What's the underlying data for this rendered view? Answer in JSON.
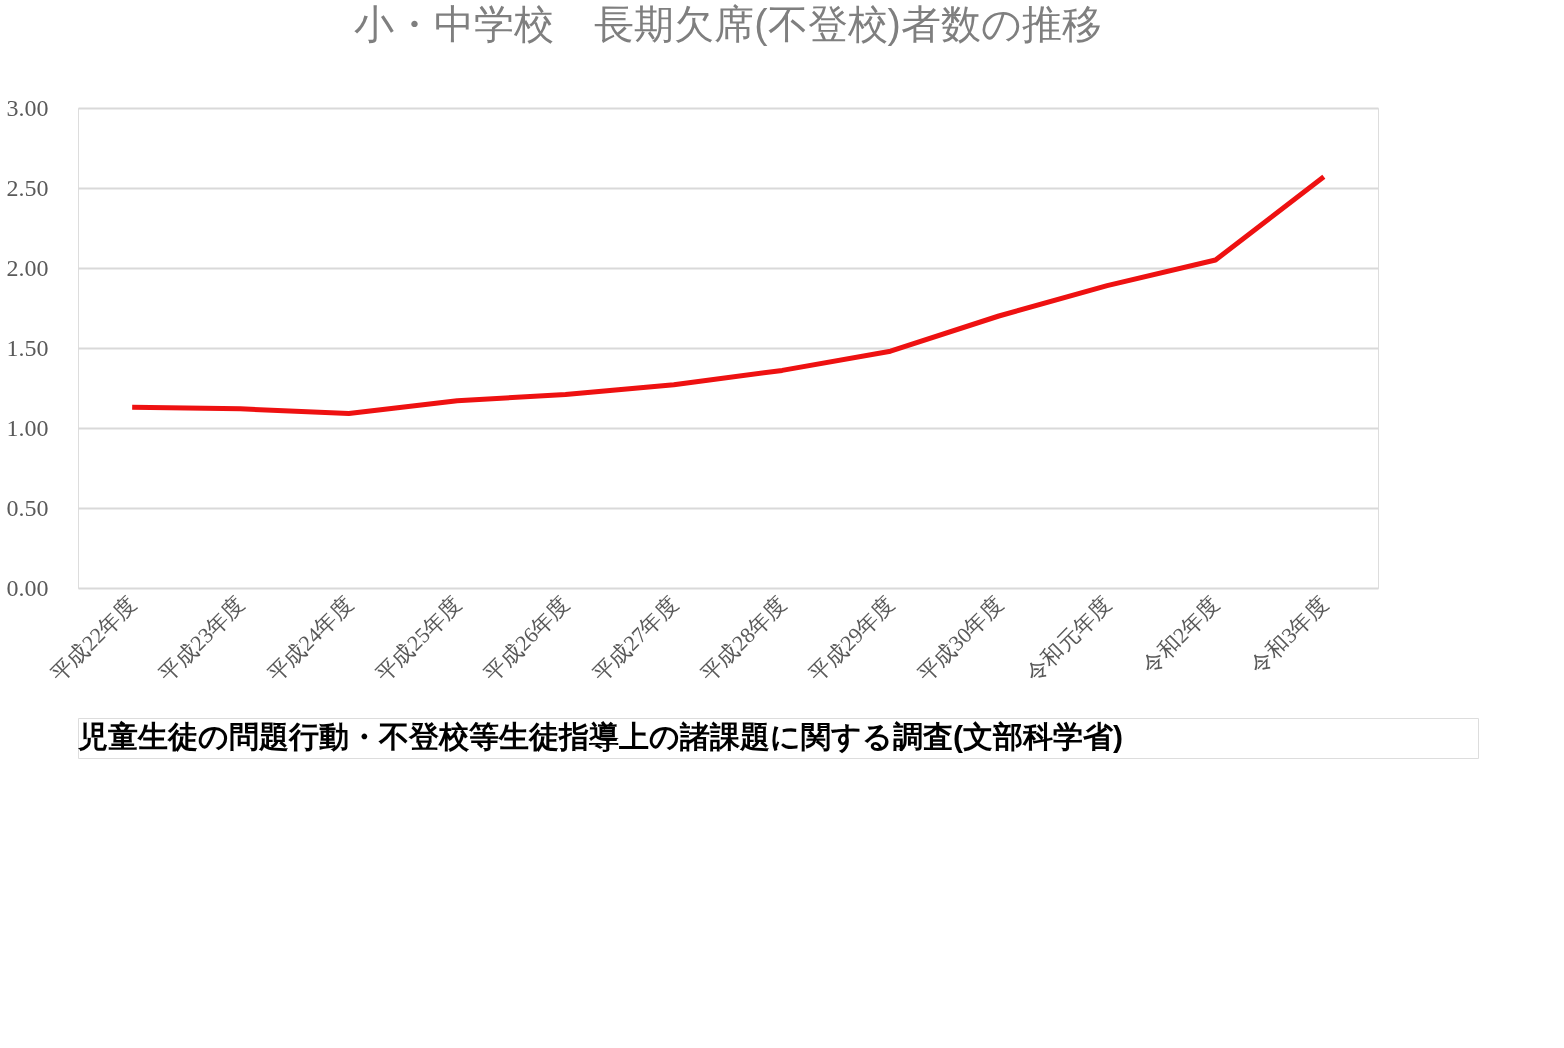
{
  "chart_data": {
    "type": "line",
    "title": "小・中学校　長期欠席(不登校)者数の推移",
    "categories": [
      "平成22年度",
      "平成23年度",
      "平成24年度",
      "平成25年度",
      "平成26年度",
      "平成27年度",
      "平成28年度",
      "平成29年度",
      "平成30年度",
      "令和元年度",
      "令和2年度",
      "令和3年度"
    ],
    "series": [
      {
        "color": "#ee1111",
        "values": [
          1.13,
          1.12,
          1.09,
          1.17,
          1.21,
          1.27,
          1.36,
          1.48,
          1.7,
          1.89,
          2.05,
          2.57
        ]
      }
    ],
    "ylim": [
      0,
      3
    ],
    "yticks": [
      {
        "value": 0,
        "label": "0.00"
      },
      {
        "value": 0.5,
        "label": "0.50"
      },
      {
        "value": 1,
        "label": "1.00"
      },
      {
        "value": 1.5,
        "label": "1.50"
      },
      {
        "value": 2,
        "label": "2.00"
      },
      {
        "value": 2.5,
        "label": "2.50"
      },
      {
        "value": 3,
        "label": "3.00"
      }
    ],
    "grid": "y",
    "legend": false,
    "marker": "none",
    "line_style": "solid",
    "annotations": [
      "児童生徒の問題行動・不登校等生徒指導上の諸課題に関する調査(文部科学省)"
    ]
  }
}
